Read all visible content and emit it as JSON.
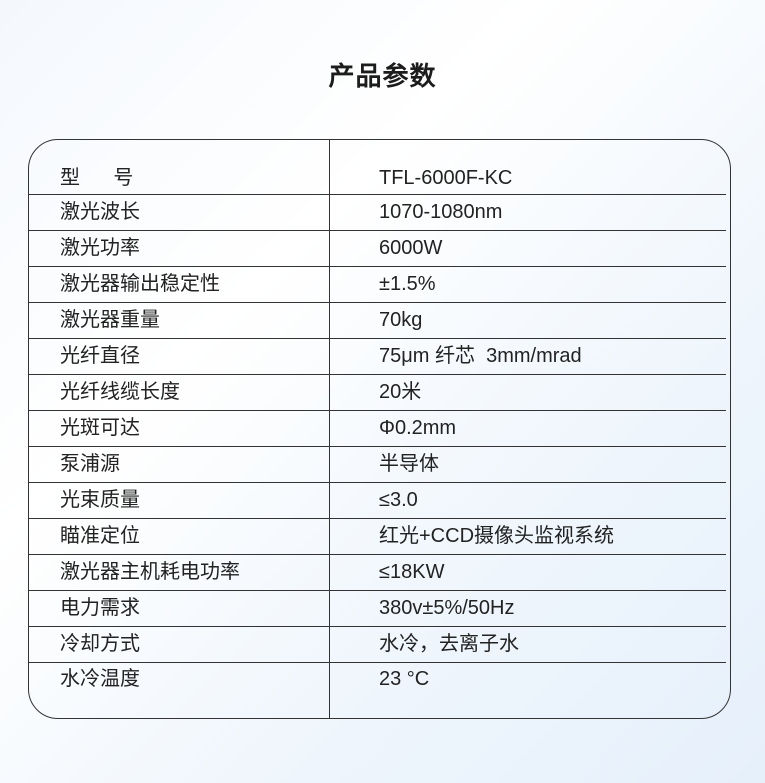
{
  "title": "产品参数",
  "rows": [
    {
      "k": "型      号",
      "v": "TFL-6000F-KC"
    },
    {
      "k": "激光波长",
      "v": "1070-1080nm"
    },
    {
      "k": "激光功率",
      "v": "6000W"
    },
    {
      "k": "激光器输出稳定性",
      "v": "±1.5%"
    },
    {
      "k": "激光器重量",
      "v": "70kg"
    },
    {
      "k": "光纤直径",
      "v": "75μm 纤芯  3mm/mrad"
    },
    {
      "k": "光纤线缆长度",
      "v": "20米"
    },
    {
      "k": "光斑可达",
      "v": "Φ0.2mm"
    },
    {
      "k": "泵浦源",
      "v": "半导体"
    },
    {
      "k": "光束质量",
      "v": "≤3.0"
    },
    {
      "k": "瞄准定位",
      "v": "红光+CCD摄像头监视系统"
    },
    {
      "k": "激光器主机耗电功率",
      "v": "≤18KW"
    },
    {
      "k": "电力需求",
      "v": "380v±5%/50Hz"
    },
    {
      "k": "冷却方式",
      "v": "水冷，去离子水"
    },
    {
      "k": "水冷温度",
      "v": "23 °C"
    }
  ]
}
